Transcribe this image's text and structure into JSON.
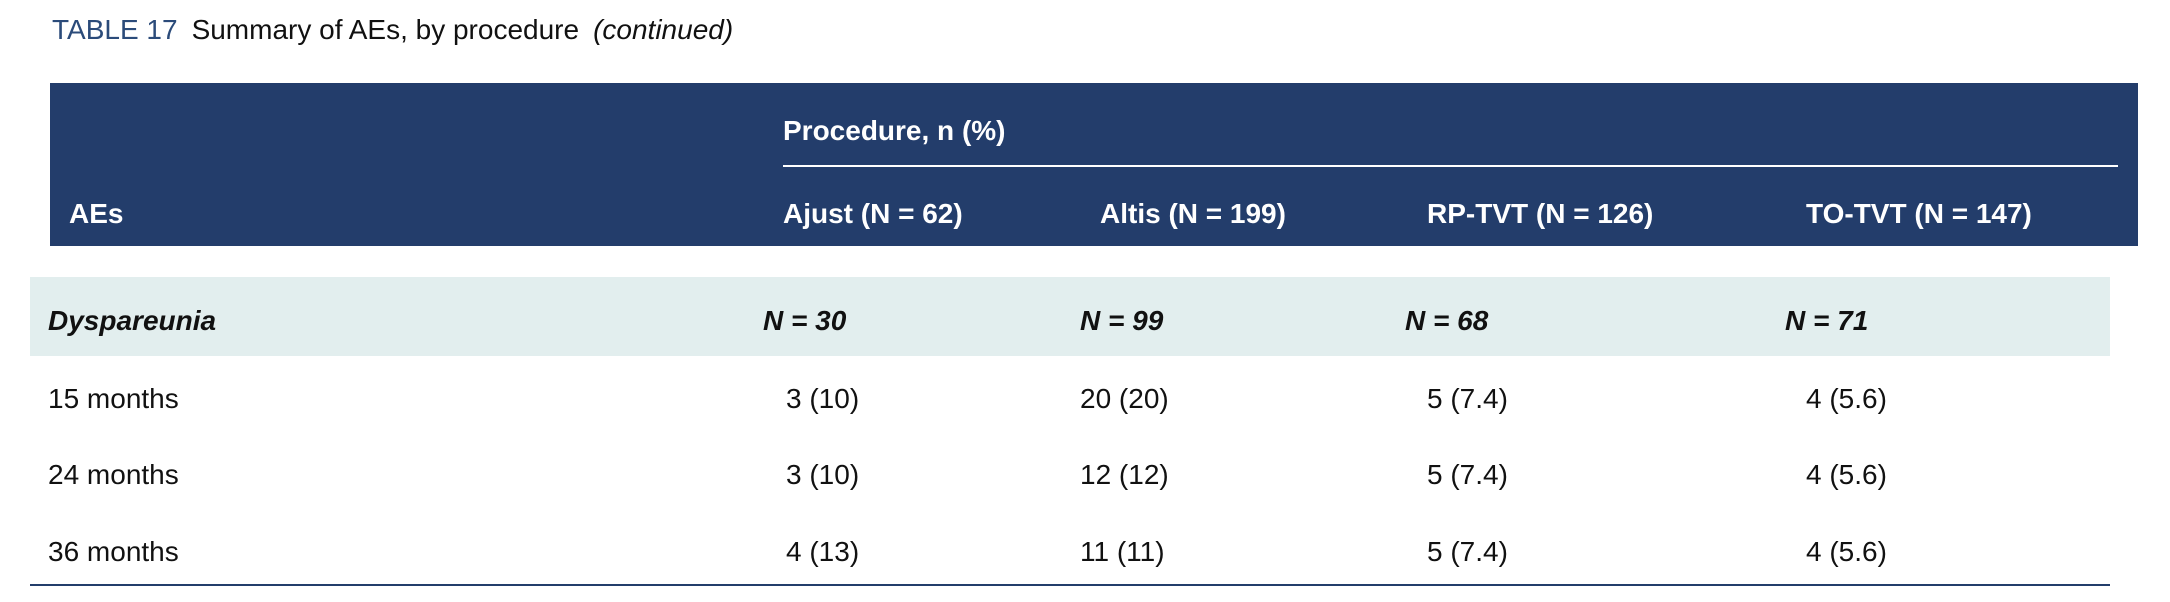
{
  "title": {
    "label": "TABLE 17",
    "text": "Summary of AEs, by procedure",
    "note": "(continued)"
  },
  "table": {
    "group_header": "Procedure, n (%)",
    "row_header": "AEs",
    "columns": [
      "Ajust (N = 62)",
      "Altis (N = 199)",
      "RP-TVT (N = 126)",
      "TO-TVT (N = 147)"
    ],
    "section": {
      "label": "Dyspareunia",
      "cells": [
        "N = 30",
        "N = 99",
        "N = 68",
        "N = 71"
      ]
    },
    "rows": [
      [
        "15 months",
        "3 (10)",
        "20 (20)",
        "5 (7.4)",
        "4 (5.6)"
      ],
      [
        "24 months",
        "3 (10)",
        "12 (12)",
        "5 (7.4)",
        "4 (5.6)"
      ],
      [
        "36 months",
        "4 (13)",
        "11 (11)",
        "5 (7.4)",
        "4 (5.6)"
      ]
    ]
  }
}
